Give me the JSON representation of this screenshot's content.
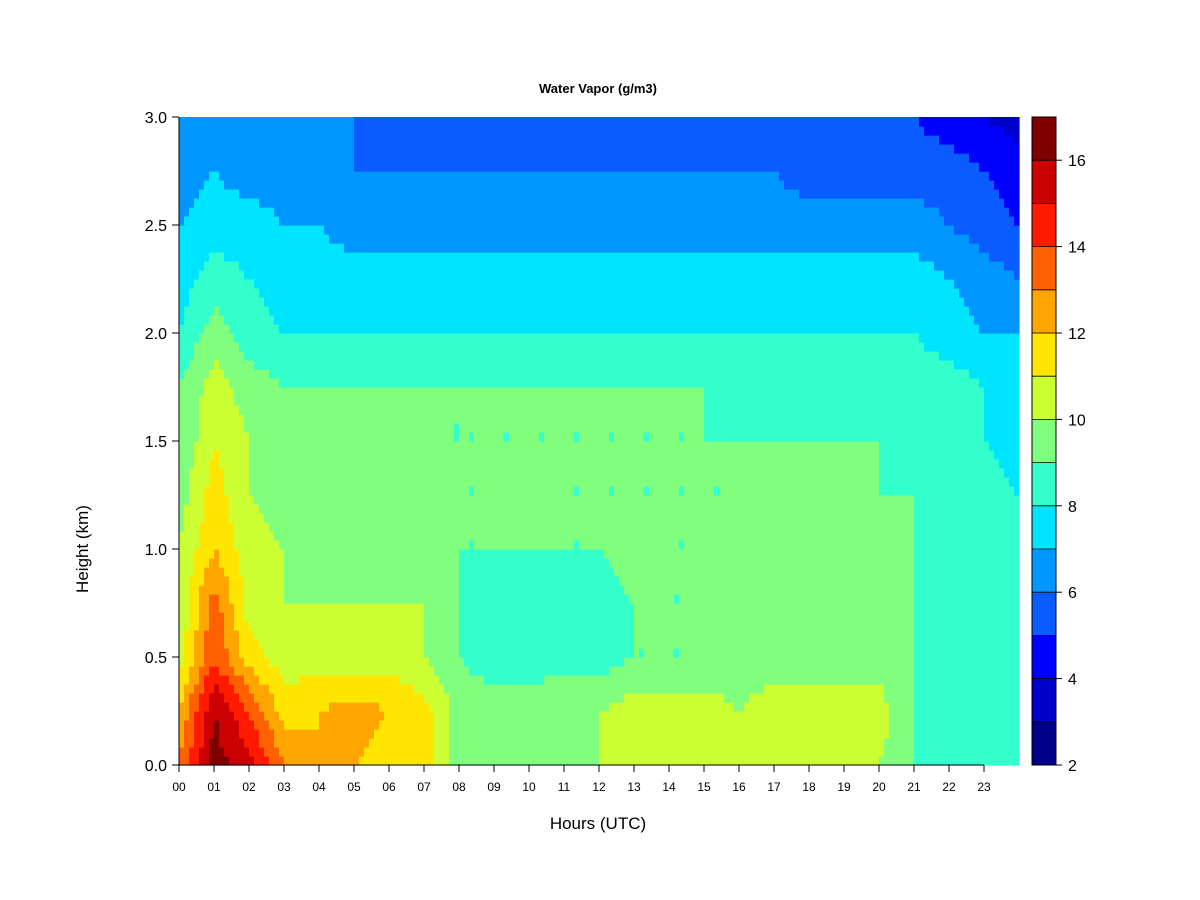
{
  "chart_data": {
    "type": "heatmap",
    "title": "Water Vapor (g/m3)",
    "xlabel": "Hours (UTC)",
    "ylabel": "Height (km)",
    "xlim": [
      0,
      24
    ],
    "ylim": [
      0.0,
      3.0
    ],
    "x_ticks": [
      0,
      1,
      2,
      3,
      4,
      5,
      6,
      7,
      8,
      9,
      10,
      11,
      12,
      13,
      14,
      15,
      16,
      17,
      18,
      19,
      20,
      21,
      22,
      23
    ],
    "x_tick_labels": [
      "00",
      "01",
      "02",
      "03",
      "04",
      "05",
      "06",
      "07",
      "08",
      "09",
      "10",
      "11",
      "12",
      "13",
      "14",
      "15",
      "16",
      "17",
      "18",
      "19",
      "20",
      "21",
      "22",
      "23"
    ],
    "y_ticks": [
      0.0,
      0.5,
      1.0,
      1.5,
      2.0,
      2.5,
      3.0
    ],
    "y_tick_labels": [
      "0.0",
      "0.5",
      "1.0",
      "1.5",
      "2.0",
      "2.5",
      "3.0"
    ],
    "colorbar": {
      "range": [
        2,
        17
      ],
      "levels": [
        2,
        3,
        4,
        5,
        6,
        7,
        8,
        9,
        10,
        11,
        12,
        13,
        14,
        15,
        16,
        17
      ],
      "colors": [
        "#00008B",
        "#0000CD",
        "#0000FF",
        "#0A5CFF",
        "#0096FF",
        "#00E5FF",
        "#33FFCC",
        "#80FF7F",
        "#CCFF33",
        "#FFE600",
        "#FFA500",
        "#FF6000",
        "#FF1A00",
        "#CC0000",
        "#800000"
      ],
      "tick_values": [
        2,
        4,
        6,
        8,
        10,
        12,
        14,
        16
      ],
      "tick_labels": [
        "2",
        "4",
        "6",
        "8",
        "10",
        "12",
        "14",
        "16"
      ]
    },
    "hours": [
      0,
      1,
      2,
      3,
      4,
      5,
      6,
      7,
      8,
      9,
      10,
      11,
      12,
      13,
      14,
      15,
      16,
      17,
      18,
      19,
      20,
      21,
      22,
      23,
      24
    ],
    "heights_km": [
      0.0,
      0.25,
      0.5,
      0.75,
      1.0,
      1.25,
      1.5,
      1.75,
      2.0,
      2.25,
      2.5,
      2.75,
      3.0
    ],
    "values": [
      [
        13.0,
        12.0,
        10.5,
        10.0,
        10.0,
        9.5,
        9.0,
        9.0,
        8.0,
        7.5,
        7.0,
        6.5,
        6.0
      ],
      [
        16.5,
        16.0,
        14.0,
        13.5,
        12.0,
        11.5,
        11.0,
        10.5,
        9.5,
        8.5,
        7.5,
        7.0,
        6.5
      ],
      [
        15.5,
        14.0,
        11.5,
        10.5,
        10.5,
        10.0,
        10.0,
        9.5,
        8.5,
        8.0,
        7.5,
        6.5,
        6.0
      ],
      [
        13.0,
        11.5,
        10.5,
        10.0,
        10.0,
        9.5,
        9.5,
        9.0,
        8.0,
        7.5,
        7.0,
        6.5,
        6.0
      ],
      [
        12.0,
        12.0,
        10.5,
        10.0,
        9.5,
        9.5,
        9.5,
        9.0,
        8.0,
        7.5,
        7.0,
        6.5,
        6.0
      ],
      [
        12.0,
        12.5,
        10.5,
        10.0,
        9.5,
        9.5,
        9.5,
        9.0,
        8.0,
        7.5,
        6.5,
        6.0,
        6.0
      ],
      [
        11.5,
        12.0,
        10.5,
        10.0,
        9.5,
        9.5,
        9.5,
        9.0,
        8.0,
        7.5,
        6.5,
        6.0,
        5.5
      ],
      [
        11.5,
        11.5,
        10.0,
        10.0,
        9.5,
        9.5,
        9.0,
        9.0,
        8.0,
        7.5,
        6.5,
        6.0,
        5.5
      ],
      [
        9.5,
        9.5,
        9.0,
        9.0,
        9.0,
        9.0,
        9.0,
        9.0,
        8.0,
        7.5,
        6.5,
        6.0,
        5.5
      ],
      [
        9.5,
        9.5,
        8.5,
        8.5,
        9.0,
        9.0,
        9.0,
        9.0,
        8.0,
        7.5,
        6.5,
        6.0,
        5.5
      ],
      [
        9.5,
        9.5,
        8.5,
        8.5,
        9.0,
        9.5,
        9.0,
        9.0,
        8.0,
        7.5,
        6.5,
        6.0,
        5.5
      ],
      [
        9.5,
        10.0,
        8.5,
        8.5,
        9.0,
        9.0,
        9.0,
        9.0,
        8.0,
        7.5,
        6.5,
        6.0,
        5.5
      ],
      [
        10.0,
        10.0,
        8.5,
        8.5,
        9.0,
        9.0,
        9.0,
        9.0,
        8.0,
        7.5,
        6.5,
        6.0,
        5.5
      ],
      [
        10.0,
        10.5,
        9.0,
        9.0,
        9.5,
        9.0,
        9.0,
        9.0,
        8.0,
        7.5,
        6.5,
        6.0,
        5.5
      ],
      [
        10.0,
        10.5,
        9.0,
        9.0,
        9.0,
        9.0,
        9.0,
        9.0,
        8.0,
        7.5,
        6.5,
        6.0,
        5.5
      ],
      [
        10.0,
        10.5,
        9.0,
        9.0,
        9.0,
        9.0,
        9.0,
        9.0,
        8.0,
        7.5,
        6.5,
        6.0,
        5.5
      ],
      [
        10.0,
        10.0,
        9.5,
        9.5,
        9.5,
        9.0,
        9.0,
        8.5,
        8.0,
        7.5,
        6.5,
        6.0,
        5.5
      ],
      [
        10.0,
        10.5,
        9.5,
        10.0,
        9.5,
        9.0,
        9.0,
        8.5,
        8.0,
        7.5,
        6.5,
        6.0,
        5.5
      ],
      [
        10.0,
        10.5,
        9.5,
        10.0,
        9.5,
        9.0,
        9.0,
        8.5,
        8.0,
        7.5,
        6.5,
        5.5,
        5.0
      ],
      [
        10.0,
        10.5,
        9.5,
        9.5,
        9.5,
        9.0,
        9.0,
        8.5,
        8.0,
        7.5,
        6.5,
        5.5,
        5.0
      ],
      [
        10.0,
        10.5,
        9.5,
        10.0,
        9.5,
        9.0,
        9.0,
        8.5,
        8.0,
        7.5,
        6.5,
        5.5,
        5.0
      ],
      [
        9.0,
        9.0,
        9.0,
        9.0,
        9.0,
        9.0,
        8.5,
        8.5,
        8.0,
        7.5,
        6.5,
        5.5,
        5.0
      ],
      [
        9.0,
        8.5,
        8.5,
        8.5,
        8.5,
        8.5,
        8.5,
        8.5,
        7.5,
        7.0,
        6.0,
        5.5,
        4.5
      ],
      [
        9.0,
        8.5,
        8.5,
        8.5,
        8.5,
        8.5,
        8.0,
        8.0,
        7.0,
        6.5,
        5.5,
        5.0,
        4.0
      ],
      [
        9.0,
        8.5,
        8.5,
        8.0,
        8.0,
        8.0,
        7.5,
        7.5,
        7.0,
        6.0,
        5.0,
        4.5,
        3.5
      ]
    ]
  }
}
